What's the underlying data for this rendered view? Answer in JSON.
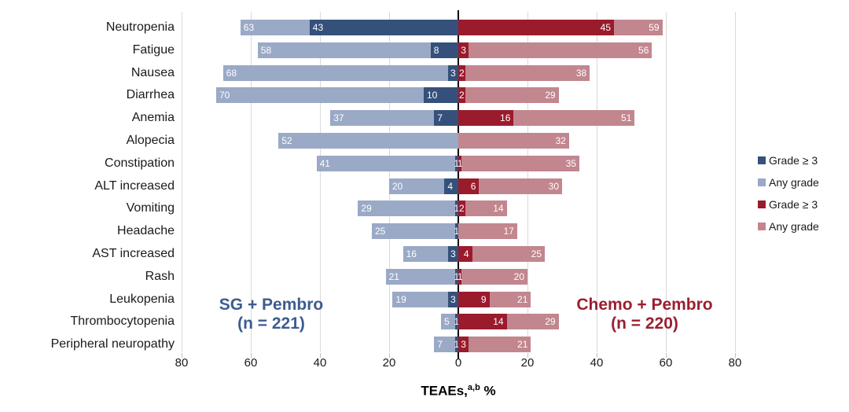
{
  "chart_data": {
    "type": "bar",
    "subtype": "tornado",
    "xlabel_parts": {
      "prefix": "TEAEs,",
      "superscript": "a,b",
      "suffix": " %"
    },
    "x_ticks": [
      {
        "label": "80",
        "value": -80
      },
      {
        "label": "60",
        "value": -60
      },
      {
        "label": "40",
        "value": -40
      },
      {
        "label": "20",
        "value": -20
      },
      {
        "label": "0",
        "value": 0
      },
      {
        "label": "20",
        "value": 20
      },
      {
        "label": "40",
        "value": 40
      },
      {
        "label": "60",
        "value": 60
      },
      {
        "label": "80",
        "value": 80
      }
    ],
    "xlim": [
      -80,
      80
    ],
    "grid": true,
    "left_group": {
      "name": "SG + Pembro",
      "n_label": "(n = 221)",
      "color": "#3d5c8f"
    },
    "right_group": {
      "name": "Chemo + Pembro",
      "n_label": "(n = 220)",
      "color": "#9a1f30"
    },
    "colors": {
      "sg_grade3": "#35517b",
      "sg_any": "#9aa9c6",
      "chemo_grade3": "#9a1b2c",
      "chemo_any": "#c2868f",
      "gridline": "#d9d9d9",
      "axis": "#000000"
    },
    "legend": [
      {
        "label": "Grade ≥ 3",
        "color_key": "sg_grade3"
      },
      {
        "label": "Any grade",
        "color_key": "sg_any"
      },
      {
        "label": "Grade ≥ 3",
        "color_key": "chemo_grade3"
      },
      {
        "label": "Any grade",
        "color_key": "chemo_any"
      }
    ],
    "rows": [
      {
        "category": "Neutropenia",
        "sg_any": 63,
        "sg_g3": 43,
        "chemo_g3": 45,
        "chemo_any": 59
      },
      {
        "category": "Fatigue",
        "sg_any": 58,
        "sg_g3": 8,
        "chemo_g3": 3,
        "chemo_any": 56
      },
      {
        "category": "Nausea",
        "sg_any": 68,
        "sg_g3": 3,
        "chemo_g3": 2,
        "chemo_any": 38
      },
      {
        "category": "Diarrhea",
        "sg_any": 70,
        "sg_g3": 10,
        "chemo_g3": 2,
        "chemo_any": 29
      },
      {
        "category": "Anemia",
        "sg_any": 37,
        "sg_g3": 7,
        "chemo_g3": 16,
        "chemo_any": 51
      },
      {
        "category": "Alopecia",
        "sg_any": 52,
        "sg_g3": null,
        "chemo_g3": null,
        "chemo_any": 32
      },
      {
        "category": "Constipation",
        "sg_any": 41,
        "sg_g3": 1,
        "chemo_g3": 1,
        "chemo_any": 35
      },
      {
        "category": "ALT increased",
        "sg_any": 20,
        "sg_g3": 4,
        "chemo_g3": 6,
        "chemo_any": 30
      },
      {
        "category": "Vomiting",
        "sg_any": 29,
        "sg_g3": 1,
        "chemo_g3": 2,
        "chemo_any": 14
      },
      {
        "category": "Headache",
        "sg_any": 25,
        "sg_g3": 1,
        "chemo_g3": null,
        "chemo_any": 17
      },
      {
        "category": "AST increased",
        "sg_any": 16,
        "sg_g3": 3,
        "chemo_g3": 4,
        "chemo_any": 25
      },
      {
        "category": "Rash",
        "sg_any": 21,
        "sg_g3": 1,
        "chemo_g3": 1,
        "chemo_any": 20
      },
      {
        "category": "Leukopenia",
        "sg_any": 19,
        "sg_g3": 3,
        "chemo_g3": 9,
        "chemo_any": 21
      },
      {
        "category": "Thrombocytopenia",
        "sg_any": 5,
        "sg_g3": 1,
        "chemo_g3": 14,
        "chemo_any": 29
      },
      {
        "category": "Peripheral neuropathy",
        "sg_any": 7,
        "sg_g3": 1,
        "chemo_g3": 3,
        "chemo_any": 21
      }
    ]
  }
}
